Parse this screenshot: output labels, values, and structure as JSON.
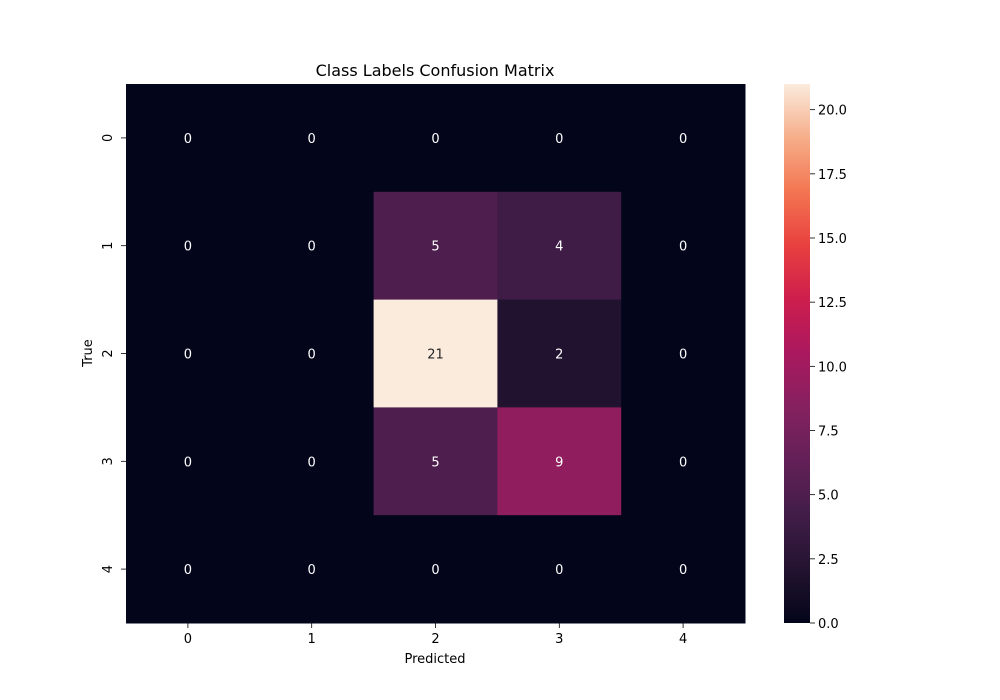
{
  "chart_data": {
    "type": "heatmap",
    "title": "Class Labels Confusion Matrix",
    "xlabel": "Predicted",
    "ylabel": "True",
    "x_categories": [
      "0",
      "1",
      "2",
      "3",
      "4"
    ],
    "y_categories": [
      "0",
      "1",
      "2",
      "3",
      "4"
    ],
    "values": [
      [
        0,
        0,
        0,
        0,
        0
      ],
      [
        0,
        0,
        5,
        4,
        0
      ],
      [
        0,
        0,
        21,
        2,
        0
      ],
      [
        0,
        0,
        5,
        9,
        0
      ],
      [
        0,
        0,
        0,
        0,
        0
      ]
    ],
    "colorbar": {
      "range": [
        0,
        21
      ],
      "ticks": [
        0,
        2.5,
        5,
        7.5,
        10,
        12.5,
        15,
        17.5,
        20
      ],
      "tick_labels": [
        "0.0",
        "2.5",
        "5.0",
        "7.5",
        "10.0",
        "12.5",
        "15.0",
        "17.5",
        "20.0"
      ],
      "colormap": "rocket"
    },
    "grid": false
  }
}
